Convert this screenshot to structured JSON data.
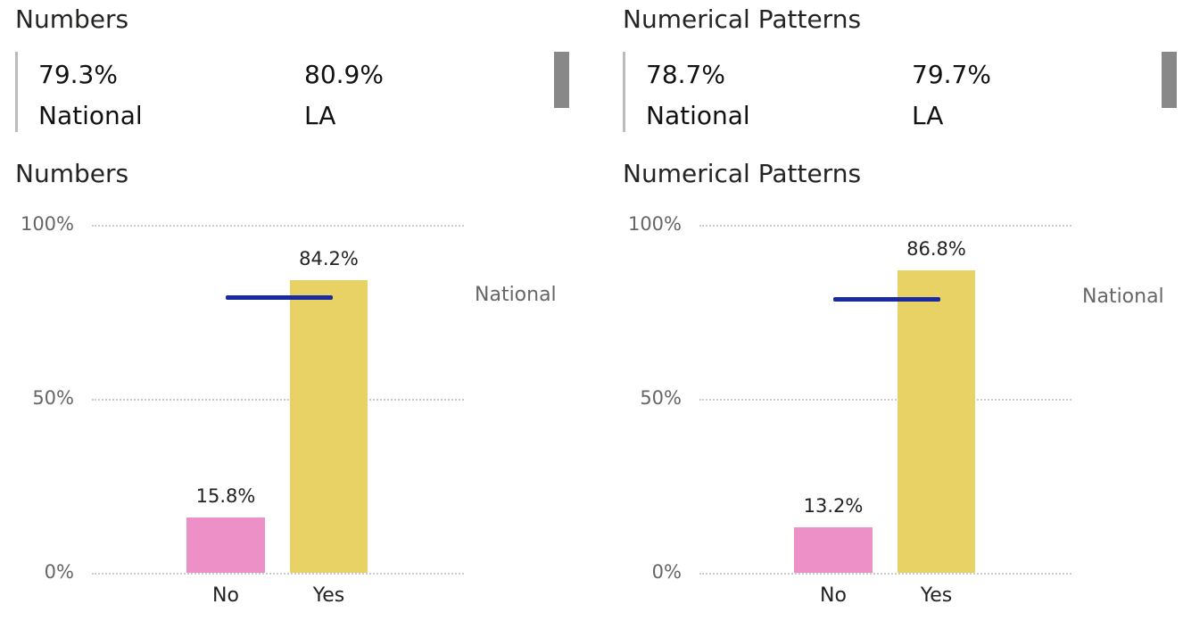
{
  "panels": [
    {
      "title": "Numbers",
      "card": {
        "national_value": "79.3%",
        "national_label": "National",
        "la_value": "80.9%",
        "la_label": "LA"
      }
    },
    {
      "title": "Numerical Patterns",
      "card": {
        "national_value": "78.7%",
        "national_label": "National",
        "la_value": "79.7%",
        "la_label": "LA"
      }
    }
  ],
  "colors": {
    "no": "#ee90c8",
    "yes": "#e8d266",
    "national_line": "#1a2aa0"
  },
  "chart_data": [
    {
      "type": "bar",
      "title": "Numbers",
      "categories": [
        "No",
        "Yes"
      ],
      "values": [
        15.8,
        84.2
      ],
      "data_labels": [
        "15.8%",
        "84.2%"
      ],
      "reference_line": {
        "name": "National",
        "value": 79.3
      },
      "yticks": [
        "0%",
        "50%",
        "100%"
      ],
      "ylim": [
        0,
        100
      ],
      "grid": true
    },
    {
      "type": "bar",
      "title": "Numerical Patterns",
      "categories": [
        "No",
        "Yes"
      ],
      "values": [
        13.2,
        86.8
      ],
      "data_labels": [
        "13.2%",
        "86.8%"
      ],
      "reference_line": {
        "name": "National",
        "value": 78.7
      },
      "yticks": [
        "0%",
        "50%",
        "100%"
      ],
      "ylim": [
        0,
        100
      ],
      "grid": true
    }
  ]
}
